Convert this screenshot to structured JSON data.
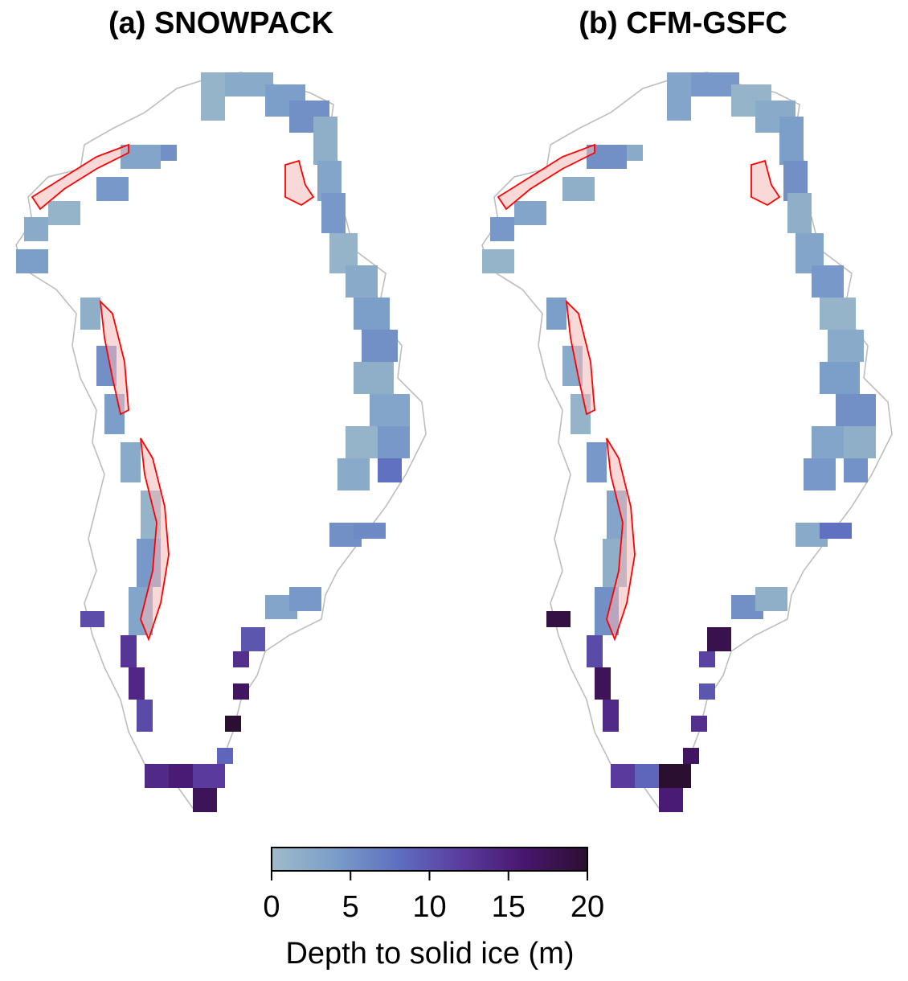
{
  "panels": [
    {
      "id": "a",
      "title": "(a) SNOWPACK"
    },
    {
      "id": "b",
      "title": "(b) CFM-GSFC"
    }
  ],
  "colorbar": {
    "label": "Depth to solid ice (m)",
    "min": 0,
    "max": 20,
    "ticks": [
      "0",
      "5",
      "10",
      "15",
      "20"
    ],
    "colors": [
      "#9fbbc9",
      "#7a9ec9",
      "#5e6fc0",
      "#5a3c9e",
      "#48166e",
      "#2b0f30"
    ]
  },
  "styles": {
    "coastline_color": "#bdbdbd",
    "region_outline_color": "#ff0000",
    "region_fill_color": "#f4b8b8"
  }
}
